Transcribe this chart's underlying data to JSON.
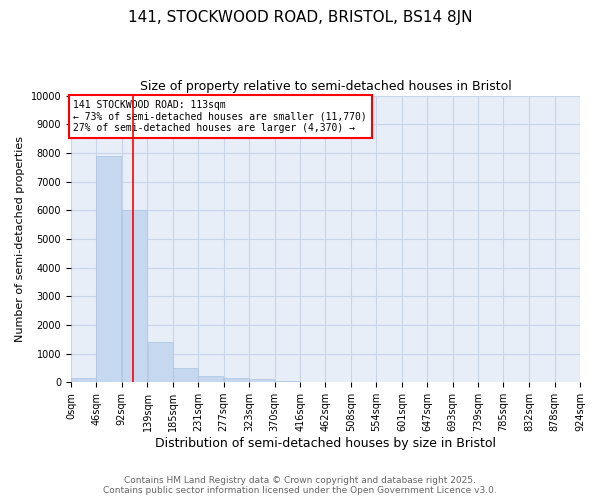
{
  "title1": "141, STOCKWOOD ROAD, BRISTOL, BS14 8JN",
  "title2": "Size of property relative to semi-detached houses in Bristol",
  "xlabel": "Distribution of semi-detached houses by size in Bristol",
  "ylabel": "Number of semi-detached properties",
  "bin_edges": [
    0,
    46,
    92,
    139,
    185,
    231,
    277,
    323,
    370,
    416,
    462,
    508,
    554,
    601,
    647,
    693,
    739,
    785,
    832,
    878,
    924
  ],
  "bar_heights": [
    150,
    7900,
    6000,
    1400,
    480,
    230,
    130,
    100,
    60,
    10,
    5,
    2,
    1,
    1,
    0,
    0,
    0,
    0,
    0,
    0
  ],
  "bar_color": "#c5d8f0",
  "bar_edge_color": "#aac4e0",
  "vline_x": 113,
  "vline_color": "red",
  "annotation_title": "141 STOCKWOOD ROAD: 113sqm",
  "annotation_line1": "← 73% of semi-detached houses are smaller (11,770)",
  "annotation_line2": "27% of semi-detached houses are larger (4,370) →",
  "annotation_box_color": "red",
  "ylim": [
    0,
    10000
  ],
  "yticks": [
    0,
    1000,
    2000,
    3000,
    4000,
    5000,
    6000,
    7000,
    8000,
    9000,
    10000
  ],
  "grid_color": "#c8d4e8",
  "bg_color": "#e8eef8",
  "footer1": "Contains HM Land Registry data © Crown copyright and database right 2025.",
  "footer2": "Contains public sector information licensed under the Open Government Licence v3.0.",
  "title1_fontsize": 11,
  "title2_fontsize": 9,
  "xlabel_fontsize": 9,
  "ylabel_fontsize": 8,
  "tick_fontsize": 7,
  "footer_fontsize": 6.5
}
